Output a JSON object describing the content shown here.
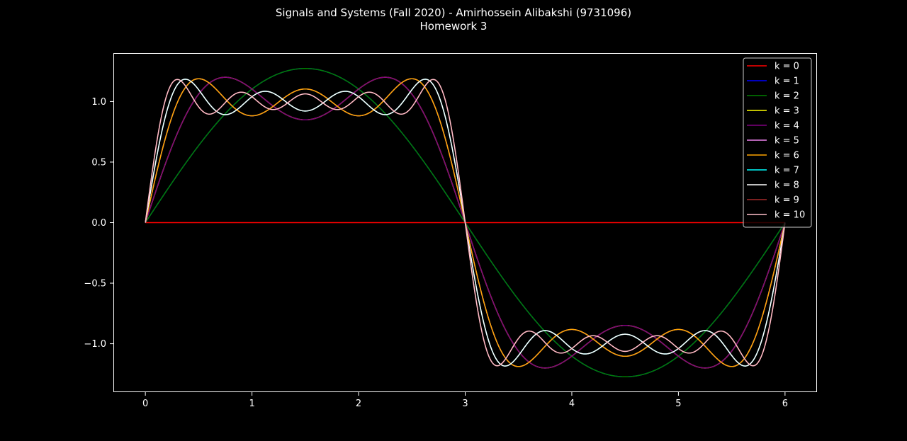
{
  "chart_data": {
    "type": "line",
    "title_line1": "Signals and Systems (Fall 2020) - Amirhossein Alibakshi (9731096)",
    "title_line2": "Homework 3",
    "xlabel": "",
    "ylabel": "",
    "xlim": [
      -0.3,
      6.3
    ],
    "ylim": [
      -1.4,
      1.4
    ],
    "x_ticks": [
      0,
      1,
      2,
      3,
      4,
      5,
      6
    ],
    "x_tick_labels": [
      "0",
      "1",
      "2",
      "3",
      "4",
      "5",
      "6"
    ],
    "y_ticks": [
      -1.0,
      -0.5,
      0.0,
      0.5,
      1.0
    ],
    "y_tick_labels": [
      "−1.0",
      "−0.5",
      "0.0",
      "0.5",
      "1.0"
    ],
    "grid": false,
    "legend_position": "top-right",
    "period": 6,
    "x_range": [
      0,
      6
    ],
    "series": [
      {
        "name": "k = 0",
        "color": "#ff0000",
        "harmonics": []
      },
      {
        "name": "k = 1",
        "color": "#0000ff",
        "harmonics": [
          1
        ]
      },
      {
        "name": "k = 2",
        "color": "#008000",
        "harmonics": [
          1
        ]
      },
      {
        "name": "k = 3",
        "color": "#ffff00",
        "harmonics": [
          1,
          3
        ]
      },
      {
        "name": "k = 4",
        "color": "#800080",
        "harmonics": [
          1,
          3
        ]
      },
      {
        "name": "k = 5",
        "color": "#ee82ee",
        "harmonics": [
          1,
          3,
          5
        ]
      },
      {
        "name": "k = 6",
        "color": "#ffa500",
        "harmonics": [
          1,
          3,
          5
        ]
      },
      {
        "name": "k = 7",
        "color": "#00ffff",
        "harmonics": [
          1,
          3,
          5,
          7
        ]
      },
      {
        "name": "k = 8",
        "color": "#ffffff",
        "harmonics": [
          1,
          3,
          5,
          7
        ]
      },
      {
        "name": "k = 9",
        "color": "#a52a2a",
        "harmonics": [
          1,
          3,
          5,
          7,
          9
        ]
      },
      {
        "name": "k = 10",
        "color": "#ffc0cb",
        "harmonics": [
          1,
          3,
          5,
          7,
          9
        ]
      }
    ]
  }
}
